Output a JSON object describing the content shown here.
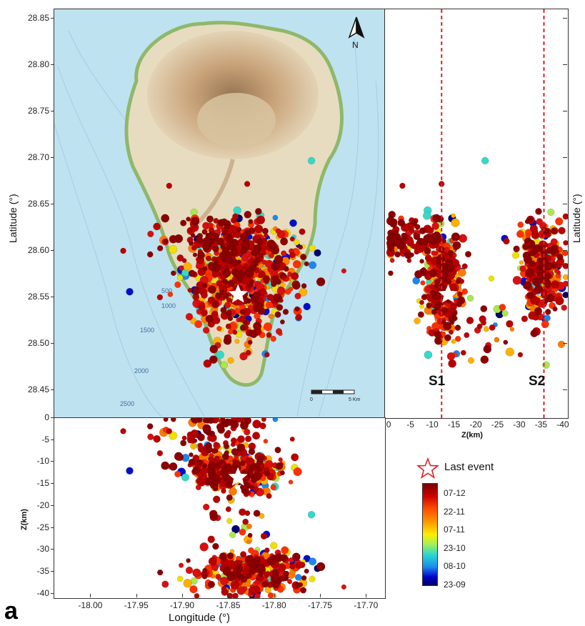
{
  "figure": {
    "panel_letter": "a",
    "compass_label": "N",
    "scale_bar": {
      "label_start": "0",
      "label_end": "5 Km"
    },
    "legend": {
      "star_label": "Last event"
    },
    "colorbar": {
      "labels": [
        "07-12",
        "22-11",
        "07-11",
        "23-10",
        "08-10",
        "23-09"
      ]
    }
  },
  "map": {
    "bathymetry_labels": [
      "500",
      "1000",
      "1500",
      "2000",
      "2500"
    ],
    "axis_ylabel": "Latitude (°)",
    "axis_xlabel": "Longitude (°)"
  },
  "chart_data": [
    {
      "type": "scatter",
      "name_panel": "map-view",
      "xlabel": "Longitude (°)",
      "ylabel": "Latitude (°)",
      "xlim": [
        -18.04,
        -17.68
      ],
      "ylim": [
        28.42,
        28.86
      ],
      "x_ticks": [
        "-18.00",
        "-17.95",
        "-17.90",
        "-17.85",
        "-17.80",
        "-17.75",
        "-17.70"
      ],
      "y_ticks": [
        "28.45",
        "28.50",
        "28.55",
        "28.60",
        "28.65",
        "28.70",
        "28.75",
        "28.80",
        "28.85"
      ],
      "last_event": {
        "lon": -17.84,
        "lat": 28.553
      },
      "clusters": [
        {
          "lon": -17.845,
          "lat": 28.565,
          "spread": [
            0.04,
            0.045
          ],
          "dominant": "red"
        },
        {
          "lon": -17.86,
          "lat": 28.61,
          "spread": [
            0.03,
            0.02
          ],
          "dominant": "darkred"
        }
      ]
    },
    {
      "type": "scatter",
      "name_panel": "depth-vs-latitude",
      "xlabel": "Z(km)",
      "ylabel": "Latitude (°)",
      "xlim": [
        1,
        -41
      ],
      "ylim": [
        28.42,
        28.86
      ],
      "x_ticks": [
        "0",
        "-5",
        "-10",
        "-15",
        "-20",
        "-25",
        "-30",
        "-35",
        "-40"
      ],
      "sections": [
        {
          "label": "S1",
          "z": -12
        },
        {
          "label": "S2",
          "z": -35.5
        }
      ],
      "last_event": {
        "z": -13.5,
        "lat": 28.553
      }
    },
    {
      "type": "scatter",
      "name_panel": "depth-vs-longitude",
      "xlabel": "Longitude (°)",
      "ylabel": "Z(km)",
      "xlim": [
        -18.04,
        -17.68
      ],
      "ylim": [
        -41,
        0
      ],
      "y_ticks": [
        "0",
        "-5",
        "-10",
        "-15",
        "-20",
        "-25",
        "-30",
        "-35",
        "-40"
      ],
      "last_event": {
        "lon": -17.84,
        "z": -13.5
      }
    }
  ],
  "colors": {
    "sea": "#bfe2f0",
    "land": "#e8dcc0",
    "coast": "#8fb86a",
    "relief": "#b08860",
    "section_line": "#e0202a"
  }
}
